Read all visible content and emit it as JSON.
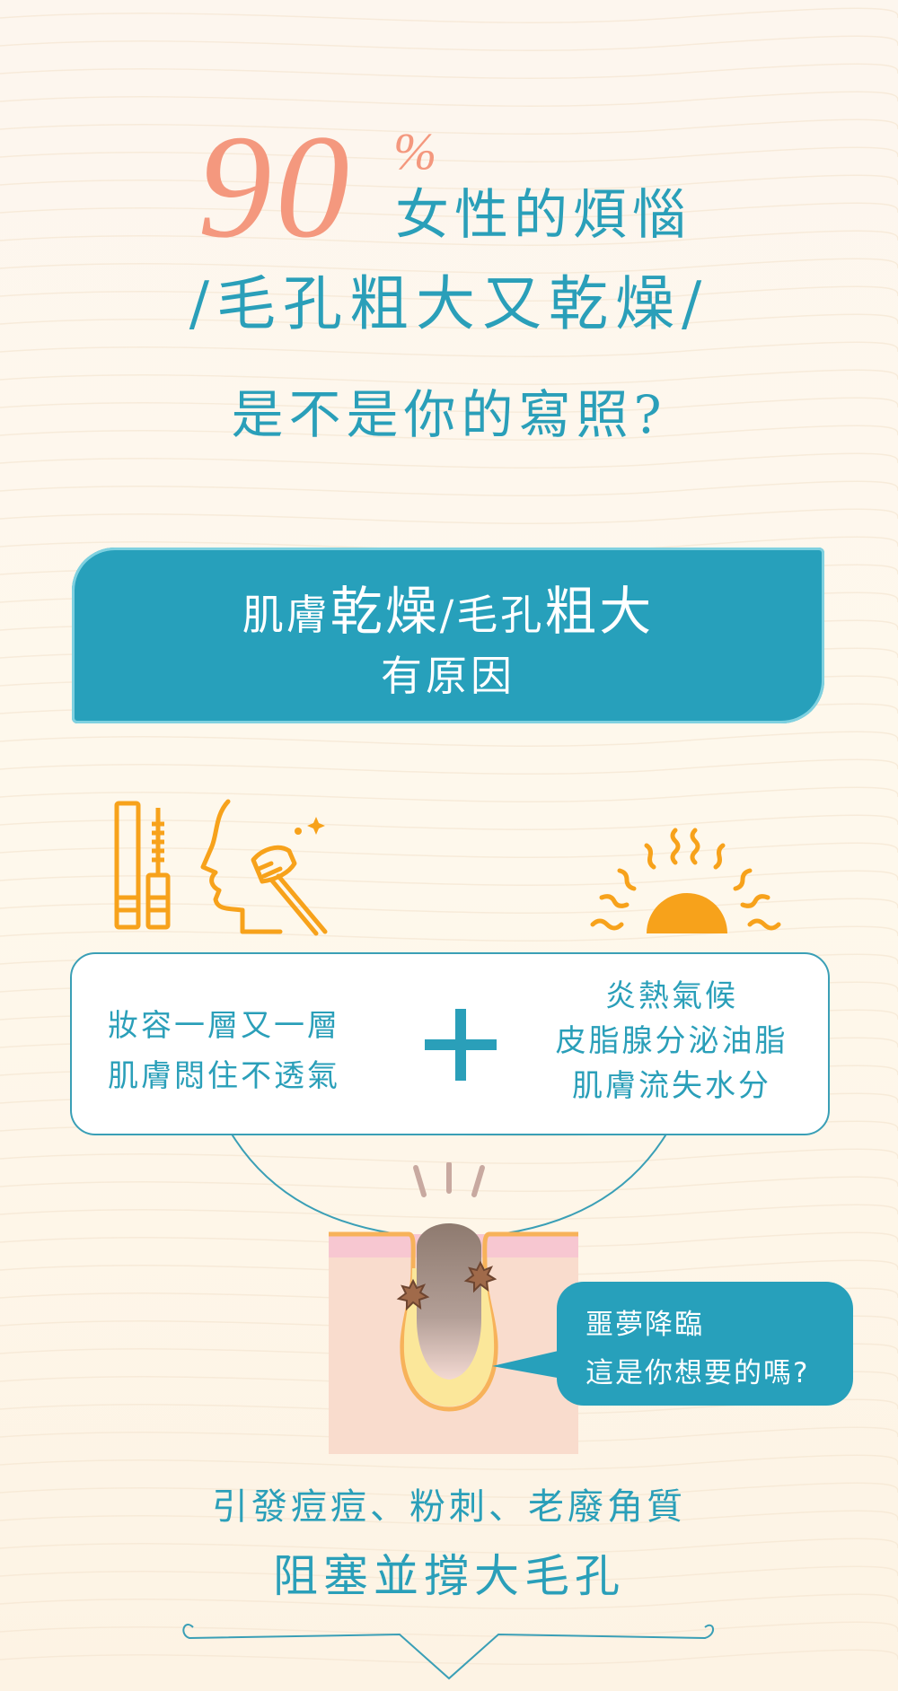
{
  "headline": {
    "number": "90",
    "percent": "%",
    "line1": "女性的煩惱",
    "line2": "/毛孔粗大又乾燥/",
    "line3": "是不是你的寫照?"
  },
  "cause_box": {
    "part1": "肌膚",
    "part2": "乾燥",
    "part3": "/毛孔",
    "part4": "粗大",
    "line2": "有原因"
  },
  "info_box": {
    "left_lines": [
      "妝容一層又一層",
      "肌膚悶住不透氣"
    ],
    "right_lines": [
      "炎熱氣候",
      "皮脂腺分泌油脂",
      "肌膚流失水分"
    ]
  },
  "bubble": {
    "line1": "噩夢降臨",
    "line2": "這是你想要的嗎?"
  },
  "bottom": {
    "line1": "引發痘痘、粉刺、老廢角質",
    "line2": "阻塞並撐大毛孔"
  },
  "colors": {
    "teal": "#27a0bb",
    "coral": "#f4987e",
    "orange": "#f7a21b",
    "skin": "#f9dccd",
    "pink": "#f7c7d1"
  }
}
